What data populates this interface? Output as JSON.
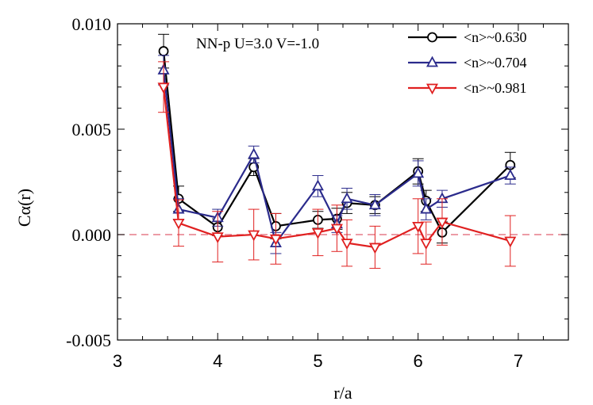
{
  "chart_data": {
    "type": "line",
    "title": "",
    "annotation": "NN-p  U=3.0 V=-1.0",
    "xlabel": "r/a",
    "ylabel": "Cα(r)",
    "xlim": [
      3,
      7.5
    ],
    "ylim": [
      -0.005,
      0.01
    ],
    "xticks": [
      3,
      4,
      5,
      6,
      7
    ],
    "xtick_labels": [
      "3",
      "4",
      "5",
      "6",
      "7"
    ],
    "yticks": [
      -0.005,
      0,
      0.005,
      0.01
    ],
    "ytick_labels": [
      "-0.005",
      "0.000",
      "0.005",
      "0.010"
    ],
    "reference_line": {
      "y": 0,
      "style": "dashed",
      "color": "#e06070"
    },
    "legend_position": "top-right",
    "series": [
      {
        "name": "<n>~0.630",
        "color": "#000000",
        "marker": "circle",
        "x": [
          3.46,
          3.61,
          4.0,
          4.36,
          4.58,
          5.0,
          5.19,
          5.29,
          5.57,
          6.0,
          6.08,
          6.24,
          6.92
        ],
        "y": [
          0.0087,
          0.0017,
          0.00035,
          0.0032,
          0.0004,
          0.0007,
          0.00075,
          0.0015,
          0.0014,
          0.003,
          0.0016,
          0.0001,
          0.0033
        ],
        "err": [
          0.0008,
          0.0006,
          0.0004,
          0.0004,
          0.0006,
          0.0004,
          0.0005,
          0.0005,
          0.0004,
          0.0006,
          0.0005,
          0.0005,
          0.0006
        ]
      },
      {
        "name": "<n>~0.704",
        "color": "#2b2b8c",
        "marker": "triangle-up",
        "x": [
          3.46,
          3.61,
          4.0,
          4.36,
          4.58,
          5.0,
          5.19,
          5.29,
          5.57,
          6.0,
          6.08,
          6.24,
          6.92
        ],
        "y": [
          0.0078,
          0.0012,
          0.0008,
          0.0038,
          -0.0004,
          0.0023,
          0.0005,
          0.0017,
          0.0014,
          0.0029,
          0.0012,
          0.0017,
          0.0028
        ],
        "err": [
          0.0007,
          0.0005,
          0.0004,
          0.0004,
          0.0005,
          0.0005,
          0.0004,
          0.0005,
          0.0005,
          0.0006,
          0.0005,
          0.0004,
          0.0004
        ]
      },
      {
        "name": "<n>~0.981",
        "color": "#e02020",
        "marker": "triangle-down",
        "x": [
          3.46,
          3.61,
          4.0,
          4.36,
          4.58,
          5.0,
          5.19,
          5.29,
          5.57,
          6.0,
          6.08,
          6.24,
          6.92
        ],
        "y": [
          0.007,
          0.00055,
          -0.0001,
          0.0,
          -0.0002,
          0.0001,
          0.0003,
          -0.0004,
          -0.0006,
          0.0004,
          -0.0004,
          0.0006,
          -0.0003
        ],
        "err": [
          0.0012,
          0.0011,
          0.0012,
          0.0012,
          0.0012,
          0.0011,
          0.0011,
          0.0011,
          0.001,
          0.0013,
          0.001,
          0.0011,
          0.0012
        ]
      }
    ]
  }
}
